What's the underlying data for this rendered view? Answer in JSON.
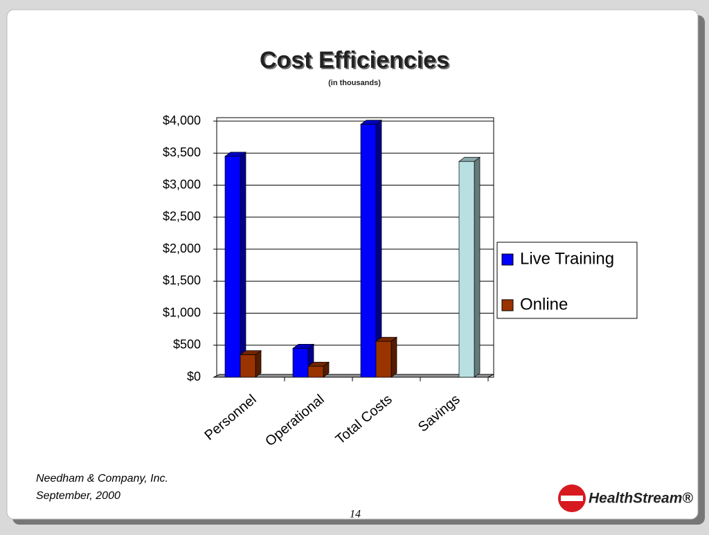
{
  "chart_data": {
    "type": "bar3d",
    "title": "Cost Efficiencies",
    "subtitle": "(in thousands)",
    "categories": [
      "Personnel",
      "Operational",
      "Total Costs",
      "Savings"
    ],
    "series": [
      {
        "name": "Live Training",
        "color": "#0000ff",
        "values": [
          3450,
          450,
          3950,
          null
        ]
      },
      {
        "name": "Online",
        "color": "#993300",
        "values": [
          350,
          170,
          560,
          null
        ]
      },
      {
        "color": "#b8e0e2",
        "values": [
          null,
          null,
          null,
          3370
        ]
      }
    ],
    "ylim": [
      0,
      4000
    ],
    "yticks": [
      {
        "value": 0,
        "label": "$0"
      },
      {
        "value": 500,
        "label": "$500"
      },
      {
        "value": 1000,
        "label": "$1,000"
      },
      {
        "value": 1500,
        "label": "$1,500"
      },
      {
        "value": 2000,
        "label": "$2,000"
      },
      {
        "value": 2500,
        "label": "$2,500"
      },
      {
        "value": 3000,
        "label": "$3,000"
      },
      {
        "value": 3500,
        "label": "$3,500"
      },
      {
        "value": 4000,
        "label": "$4,000"
      }
    ],
    "grid": true,
    "legend": "right"
  },
  "slide": {
    "source": [
      "Needham & Company, Inc.",
      "September, 2000"
    ],
    "page_number": "14",
    "logo": "HealthStream®"
  }
}
